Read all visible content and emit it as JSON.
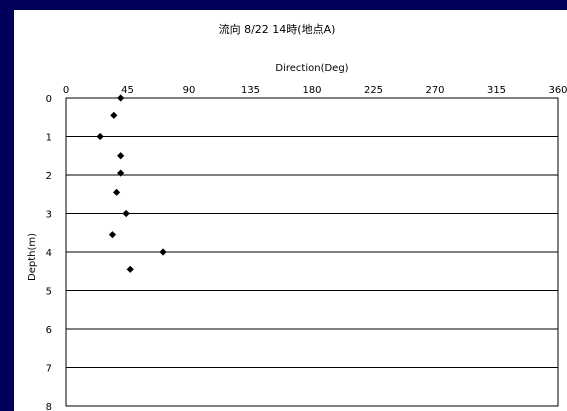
{
  "chart_data": {
    "type": "scatter",
    "title": "流向  8/22 14時(地点A)",
    "xlabel": "Direction(Deg)",
    "ylabel": "Depth(m)",
    "xlim": [
      0,
      360
    ],
    "ylim": [
      0,
      8
    ],
    "y_inverted": true,
    "x_axis_position": "top",
    "x_ticks": [
      0,
      45,
      90,
      135,
      180,
      225,
      270,
      315,
      360
    ],
    "y_ticks": [
      0,
      1,
      2,
      3,
      4,
      5,
      6,
      7,
      8
    ],
    "grid": "horizontal",
    "marker": "diamond",
    "marker_color": "#000000",
    "background_color": "#00005a",
    "points": [
      {
        "x": 40,
        "y": 0.0
      },
      {
        "x": 35,
        "y": 0.45
      },
      {
        "x": 25,
        "y": 1.0
      },
      {
        "x": 40,
        "y": 1.5
      },
      {
        "x": 40,
        "y": 1.95
      },
      {
        "x": 37,
        "y": 2.45
      },
      {
        "x": 44,
        "y": 3.0
      },
      {
        "x": 34,
        "y": 3.55
      },
      {
        "x": 71,
        "y": 4.0
      },
      {
        "x": 47,
        "y": 4.45
      }
    ]
  }
}
